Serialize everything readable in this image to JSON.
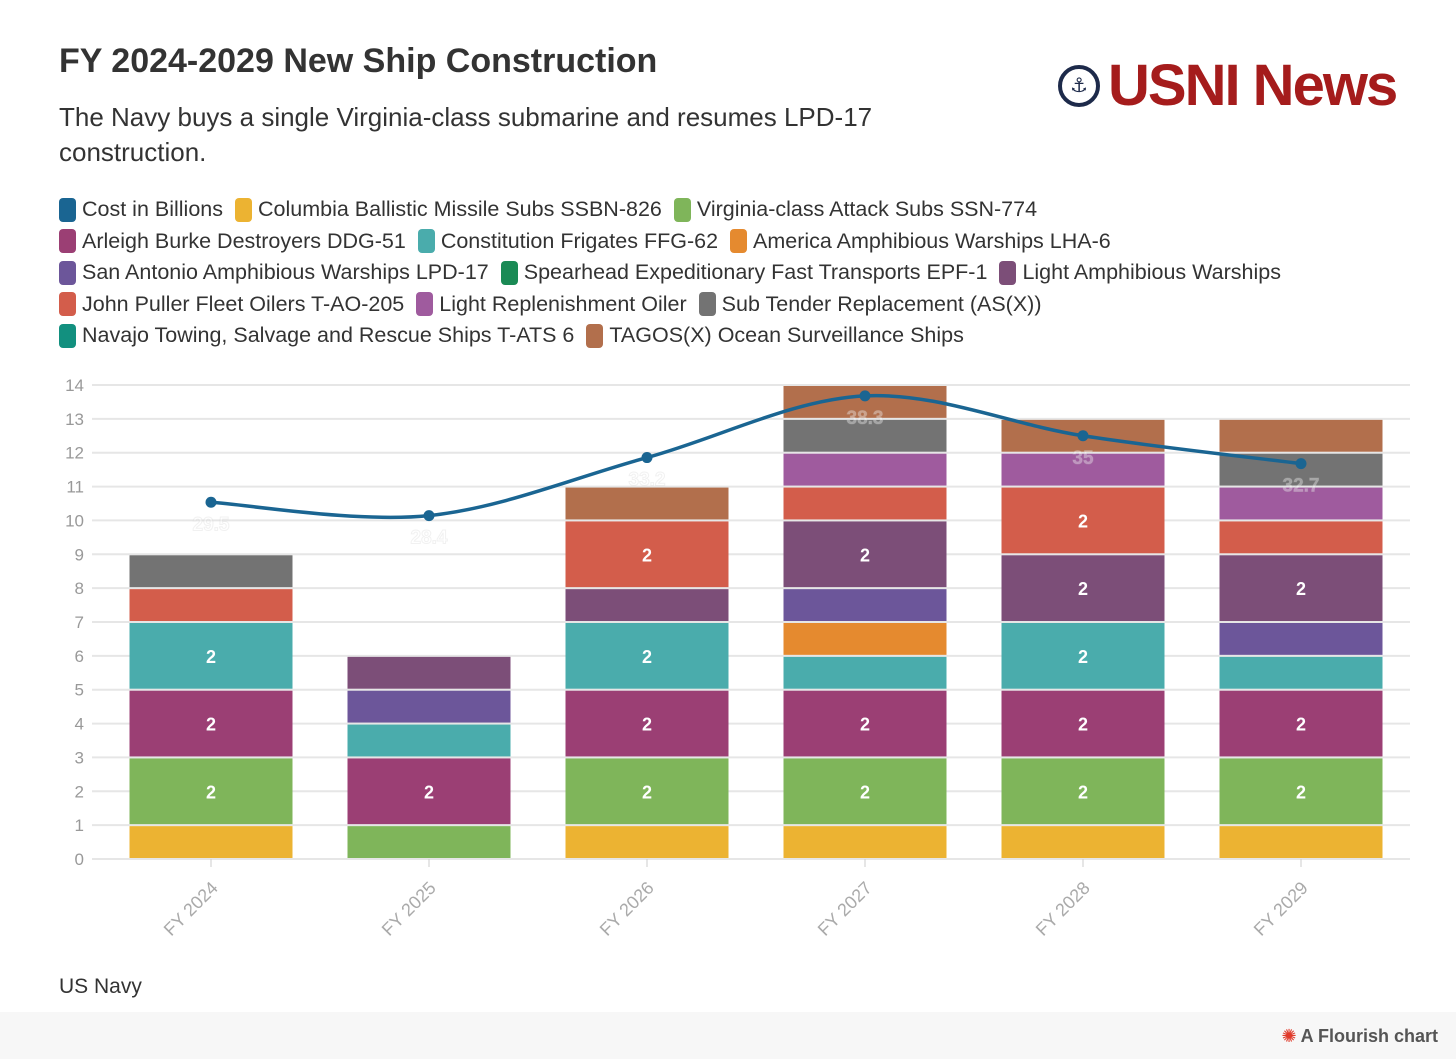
{
  "header": {
    "title": "FY 2024-2029 New Ship Construction",
    "subtitle": "The Navy buys a single Virginia-class submarine and resumes LPD-17 construction.",
    "logo_text": "USNI News"
  },
  "footer": {
    "source": "US Navy",
    "flourish": "A Flourish chart"
  },
  "chart_data": {
    "type": "bar",
    "stacked": true,
    "categories": [
      "FY 2024",
      "FY 2025",
      "FY 2026",
      "FY 2027",
      "FY 2028",
      "FY 2029"
    ],
    "ylim": [
      0,
      14
    ],
    "yticks": [
      0,
      1,
      2,
      3,
      4,
      5,
      6,
      7,
      8,
      9,
      10,
      11,
      12,
      13,
      14
    ],
    "grid": true,
    "legend_position": "top",
    "line": {
      "name": "Cost in Billions",
      "color": "#1a6592",
      "values": [
        29.5,
        28.4,
        33.2,
        38.3,
        35,
        32.7
      ],
      "y2lim": [
        0,
        39.2
      ]
    },
    "series": [
      {
        "name": "Columbia Ballistic Missile Subs SSBN-826",
        "color": "#ecb332",
        "values": [
          1,
          0,
          1,
          1,
          1,
          1
        ]
      },
      {
        "name": "Virginia-class Attack Subs SSN-774",
        "color": "#7fb55a",
        "values": [
          2,
          1,
          2,
          2,
          2,
          2
        ]
      },
      {
        "name": "Arleigh Burke Destroyers DDG-51",
        "color": "#9b3f74",
        "values": [
          2,
          2,
          2,
          2,
          2,
          2
        ]
      },
      {
        "name": "Constitution Frigates FFG-62",
        "color": "#4aacac",
        "values": [
          2,
          1,
          2,
          1,
          2,
          1
        ]
      },
      {
        "name": "America Amphibious Warships LHA-6",
        "color": "#e58a2f",
        "values": [
          0,
          0,
          0,
          1,
          0,
          0
        ]
      },
      {
        "name": "San Antonio Amphibious Warships LPD-17",
        "color": "#6c569a",
        "values": [
          0,
          1,
          0,
          1,
          0,
          1
        ]
      },
      {
        "name": "Spearhead Expeditionary Fast Transports EPF-1",
        "color": "#1a8a55",
        "values": [
          0,
          0,
          0,
          0,
          0,
          0
        ]
      },
      {
        "name": "Light Amphibious Warships",
        "color": "#7c4e78",
        "values": [
          0,
          1,
          1,
          2,
          2,
          2
        ]
      },
      {
        "name": "John Puller Fleet Oilers T-AO-205",
        "color": "#d35d4b",
        "values": [
          1,
          0,
          2,
          1,
          2,
          1
        ]
      },
      {
        "name": "Light Replenishment Oiler",
        "color": "#9f5b9e",
        "values": [
          0,
          0,
          0,
          1,
          1,
          1
        ]
      },
      {
        "name": "Sub Tender Replacement (AS(X))",
        "color": "#737373",
        "values": [
          1,
          0,
          0,
          1,
          0,
          1
        ]
      },
      {
        "name": "Navajo Towing, Salvage and Rescue Ships T-ATS 6",
        "color": "#12907f",
        "values": [
          0,
          0,
          0,
          0,
          0,
          0
        ]
      },
      {
        "name": "TAGOS(X) Ocean Surveillance Ships",
        "color": "#b26f4c",
        "values": [
          0,
          0,
          1,
          1,
          1,
          1
        ]
      }
    ]
  }
}
